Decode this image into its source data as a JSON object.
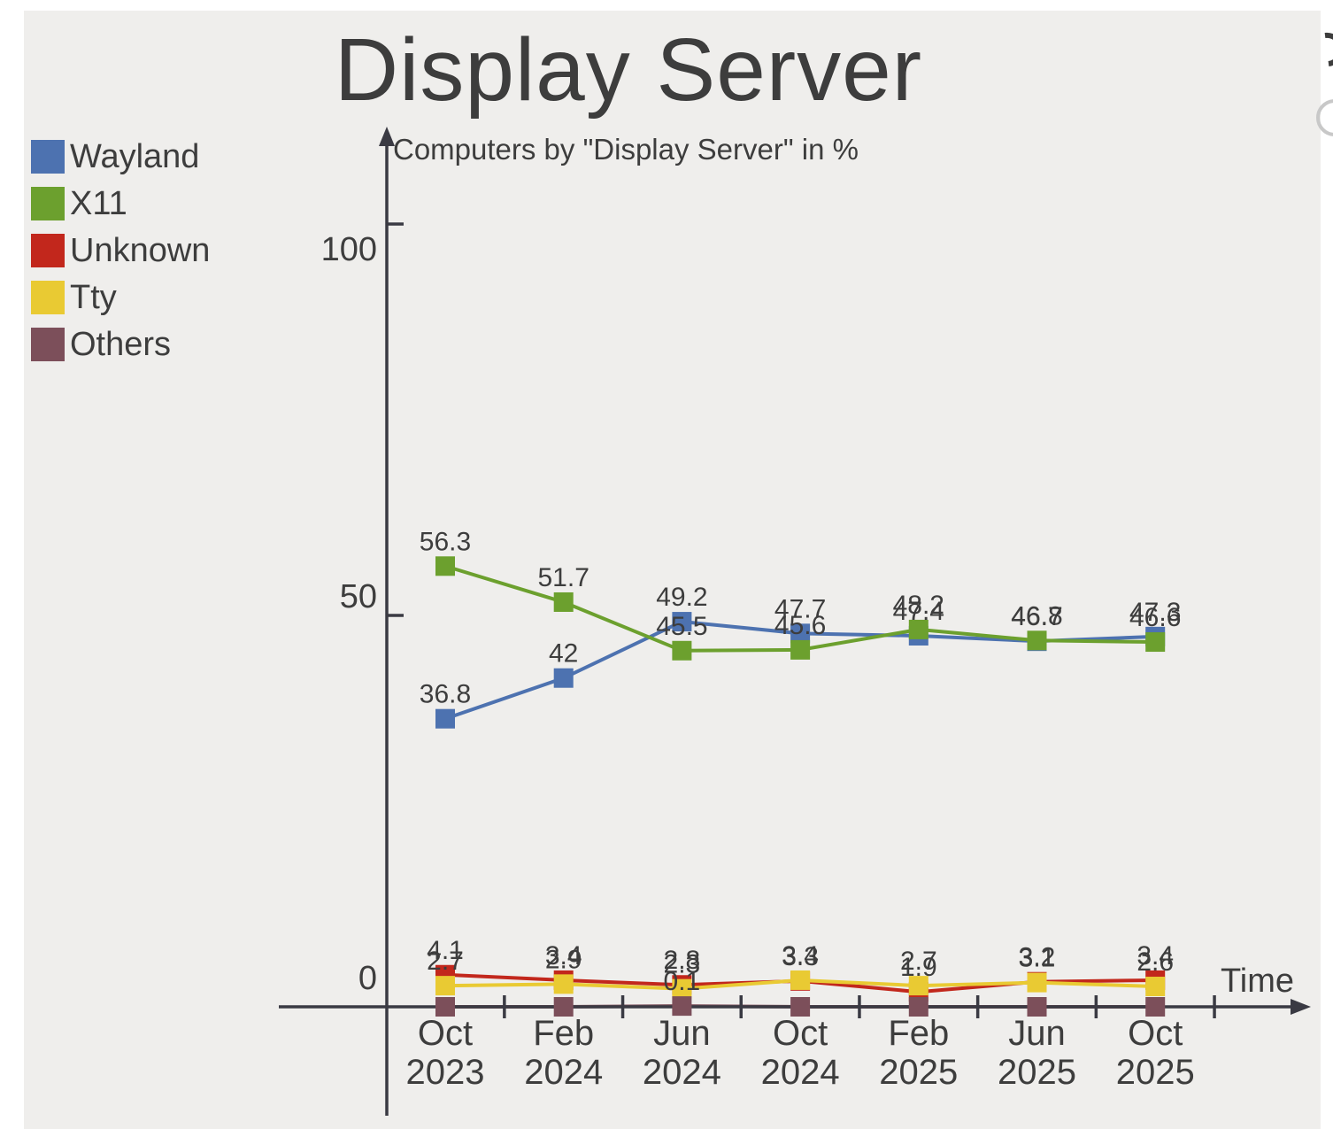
{
  "page": {
    "background": "#ffffff",
    "canvas_background": "#efeeec",
    "text_color": "#3d3d3d",
    "axis_color": "#3a3a43"
  },
  "header": {
    "title": "Display Server",
    "subtitle": "Computers by \"Display Server\" in %"
  },
  "chart_data": {
    "type": "line",
    "title": "Display Server",
    "subtitle": "Computers by \"Display Server\" in %",
    "xlabel": "Time",
    "ylabel": "%",
    "ylim": [
      0,
      115
    ],
    "y_ticks": [
      0,
      50,
      100
    ],
    "grid": false,
    "legend_position": "top-left",
    "marker": "square",
    "categories": [
      "Oct 2023",
      "Feb 2024",
      "Jun 2024",
      "Oct 2024",
      "Feb 2025",
      "Jun 2025",
      "Oct 2025"
    ],
    "series": [
      {
        "name": "Wayland",
        "color": "#4d72b0",
        "values": [
          36.8,
          42,
          49.2,
          47.7,
          47.4,
          46.7,
          47.3
        ],
        "labels": [
          "36.8",
          "42",
          "49.2",
          "47.7",
          "47.4",
          "46.7",
          "47.3"
        ]
      },
      {
        "name": "X11",
        "color": "#6ca02e",
        "values": [
          56.3,
          51.7,
          45.5,
          45.6,
          48.2,
          46.8,
          46.6
        ],
        "labels": [
          "56.3",
          "51.7",
          "45.5",
          "45.6",
          "48.2",
          "46.8",
          "46.6"
        ]
      },
      {
        "name": "Unknown",
        "color": "#c2271c",
        "values": [
          4.1,
          3.4,
          2.8,
          3.3,
          1.9,
          3.2,
          3.4
        ],
        "labels": [
          "4.1",
          "3.4",
          "2.8",
          "3.3",
          "1.9",
          "3.2",
          "3.4"
        ]
      },
      {
        "name": "Tty",
        "color": "#e9ca33",
        "values": [
          2.7,
          2.9,
          2.3,
          3.4,
          2.7,
          3.1,
          2.6
        ],
        "labels": [
          "2.7",
          "2.9",
          "2.3",
          "3.4",
          "2.7",
          "3.1",
          "2.6"
        ]
      },
      {
        "name": "Others",
        "color": "#7c4f5a",
        "values": [
          0,
          0,
          0.1,
          0,
          0,
          0,
          0
        ],
        "labels": [
          "",
          "",
          "0.1",
          "",
          "",
          "",
          ""
        ]
      }
    ]
  },
  "axes": {
    "x_axis_title": "Time",
    "y_tick_labels": [
      "0",
      "50",
      "100"
    ]
  }
}
